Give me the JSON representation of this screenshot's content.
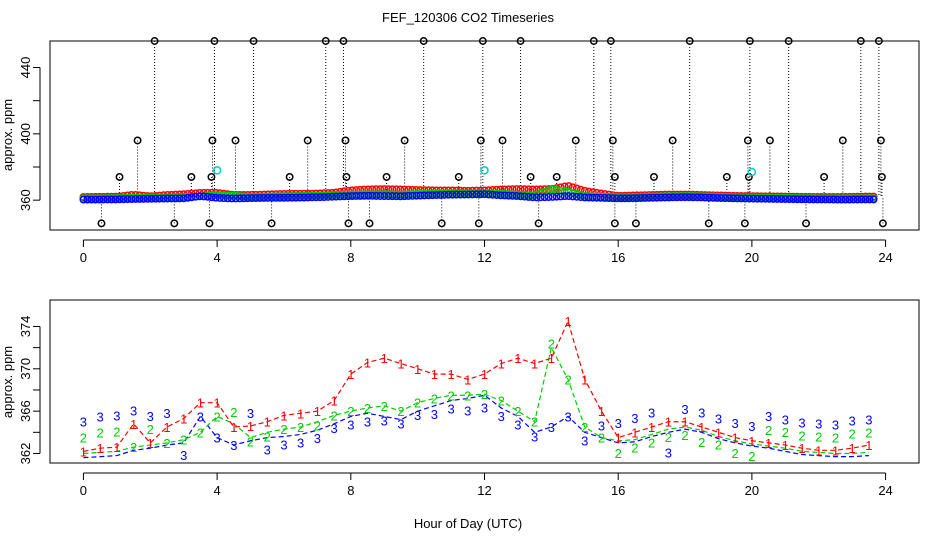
{
  "chart_data": [
    {
      "type": "scatter",
      "title": "FEF_120306  CO2 Timeseries",
      "xlabel": "",
      "ylabel": "approx. ppm",
      "xlim": [
        -1,
        25
      ],
      "ylim": [
        342,
        456
      ],
      "xticks": [
        0,
        4,
        8,
        12,
        16,
        20,
        24
      ],
      "yticks": [
        360,
        380,
        400,
        420,
        440
      ],
      "ytick_labels": [
        "360",
        "400",
        "440"
      ],
      "colors": {
        "1": "#ff0000",
        "2": "#00cc00",
        "3": "#0000ff",
        "outlier": "#000000",
        "flag": "#00cccc"
      },
      "outliers": {
        "x": [
          2.13,
          3.92,
          5.09,
          7.25,
          7.78,
          10.18,
          11.95,
          13.08,
          15.27,
          15.78,
          18.14,
          19.94,
          21.1,
          23.26,
          23.8,
          1.62,
          3.86,
          4.55,
          6.71,
          7.84,
          9.61,
          11.89,
          12.54,
          14.73,
          15.84,
          17.63,
          19.88,
          20.54,
          22.72,
          23.86,
          1.08,
          3.23,
          3.83,
          6.17,
          7.87,
          9.07,
          11.23,
          13.38,
          14.16,
          15.9,
          17.07,
          19.25,
          19.91,
          22.16,
          23.89,
          0.54,
          2.72,
          3.77,
          5.63,
          7.93,
          8.56,
          10.72,
          11.83,
          13.62,
          15.9,
          16.53,
          18.71,
          19.79,
          21.62,
          23.92
        ],
        "y": [
          456,
          456,
          456,
          456,
          456,
          456,
          456,
          456,
          456,
          456,
          456,
          456,
          456,
          456,
          456,
          396,
          396,
          396,
          396,
          396,
          396,
          396,
          396,
          396,
          396,
          396,
          396,
          396,
          396,
          396,
          374,
          374,
          374,
          374,
          374,
          374,
          374,
          374,
          374,
          374,
          374,
          374,
          374,
          374,
          374,
          346,
          346,
          346,
          346,
          346,
          346,
          346,
          346,
          346,
          346,
          346,
          346,
          346,
          346,
          346
        ]
      },
      "flags": {
        "x": [
          4.0,
          12.0,
          20.0
        ],
        "y": [
          378,
          378,
          377
        ]
      }
    },
    {
      "type": "line",
      "title": "",
      "xlabel": "Hour of Day (UTC)",
      "ylabel": "approx. ppm",
      "xlim": [
        -1,
        25
      ],
      "ylim": [
        361.1,
        376.5
      ],
      "xticks": [
        0,
        4,
        8,
        12,
        16,
        20,
        24
      ],
      "yticks": [
        362,
        364,
        366,
        368,
        370,
        372,
        374
      ],
      "ytick_labels": [
        "362",
        "366",
        "370",
        "374"
      ],
      "x": [
        0,
        0.5,
        1,
        1.5,
        2,
        2.5,
        3,
        3.5,
        4,
        4.5,
        5,
        5.5,
        6,
        6.5,
        7,
        7.5,
        8,
        8.5,
        9,
        9.5,
        10,
        10.5,
        11,
        11.5,
        12,
        12.5,
        13,
        13.5,
        14,
        14.5,
        15,
        15.5,
        16,
        16.5,
        17,
        17.5,
        18,
        18.5,
        19,
        19.5,
        20,
        20.5,
        21,
        21.5,
        22,
        22.5,
        23,
        23.5
      ],
      "series": [
        {
          "name": "1",
          "color": "#ff0000",
          "values": [
            362.2,
            362.5,
            362.6,
            364.8,
            363,
            364.5,
            365.3,
            366.8,
            366.8,
            364.5,
            364.6,
            365,
            365.6,
            365.8,
            366,
            367,
            369.5,
            370.6,
            371,
            370.5,
            370,
            369.5,
            369.5,
            369,
            369.5,
            370.5,
            371,
            370.5,
            371,
            374.5,
            369,
            366,
            363.5,
            364,
            364.5,
            365,
            365,
            364.5,
            364,
            363.5,
            363.2,
            363,
            362.8,
            362.5,
            362.3,
            362.3,
            362.5,
            362.8
          ]
        },
        {
          "name": "2",
          "color": "#00cc00",
          "values": [
            362,
            362.1,
            362.2,
            362.6,
            362.8,
            363,
            363.3,
            364,
            365.5,
            364.8,
            363.5,
            364,
            364.3,
            364.5,
            365,
            365.6,
            366,
            366.3,
            366.5,
            366,
            366.8,
            367.2,
            367.5,
            367.5,
            367.6,
            367,
            366,
            365,
            372,
            369,
            364.5,
            363.5,
            363.2,
            363.3,
            363.8,
            364.3,
            364.5,
            364.2,
            363.6,
            363.2,
            362.9,
            362.7,
            362.5,
            362.2,
            362.1,
            362,
            362,
            362.1
          ]
        },
        {
          "name": "3",
          "color": "#0000ff",
          "values": [
            361.6,
            361.7,
            361.8,
            362.3,
            362.5,
            362.8,
            363,
            365.5,
            363.5,
            362.8,
            363.2,
            363.5,
            363.6,
            363.8,
            364.2,
            364.8,
            365.5,
            365.8,
            365.5,
            365.2,
            366,
            366.5,
            367,
            367.2,
            367.5,
            366.3,
            365.5,
            364,
            364.5,
            365.5,
            364,
            363.5,
            363,
            363.1,
            363.6,
            364,
            364.3,
            364,
            363.4,
            363,
            362.7,
            362.5,
            362.2,
            361.9,
            361.8,
            361.7,
            361.7,
            361.8
          ]
        }
      ]
    }
  ]
}
